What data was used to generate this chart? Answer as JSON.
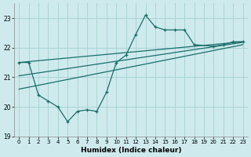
{
  "xlabel": "Humidex (Indice chaleur)",
  "ylabel": "",
  "background_color": "#ceeaec",
  "grid_color": "#aad4d7",
  "line_color": "#1a6e6a",
  "x_main": [
    0,
    1,
    2,
    3,
    4,
    5,
    6,
    7,
    8,
    9,
    10,
    11,
    12,
    13,
    14,
    15,
    16,
    17,
    18,
    20,
    21,
    22,
    23
  ],
  "y_main": [
    21.5,
    21.5,
    20.4,
    20.2,
    20.0,
    19.5,
    19.85,
    19.9,
    19.85,
    20.5,
    21.5,
    21.75,
    22.45,
    23.1,
    22.7,
    22.6,
    22.6,
    22.6,
    22.1,
    22.05,
    22.1,
    22.2,
    22.2
  ],
  "trend_lines": [
    {
      "x": [
        0,
        23
      ],
      "y": [
        21.5,
        22.2
      ]
    },
    {
      "x": [
        0,
        23
      ],
      "y": [
        21.05,
        22.18
      ]
    },
    {
      "x": [
        0,
        23
      ],
      "y": [
        20.6,
        22.1
      ]
    }
  ],
  "ylim": [
    19.0,
    23.5
  ],
  "xlim": [
    -0.5,
    23.5
  ],
  "yticks": [
    19,
    20,
    21,
    22,
    23
  ],
  "xticks": [
    0,
    1,
    2,
    3,
    4,
    5,
    6,
    7,
    8,
    9,
    10,
    11,
    12,
    13,
    14,
    15,
    16,
    17,
    18,
    19,
    20,
    21,
    22,
    23
  ]
}
